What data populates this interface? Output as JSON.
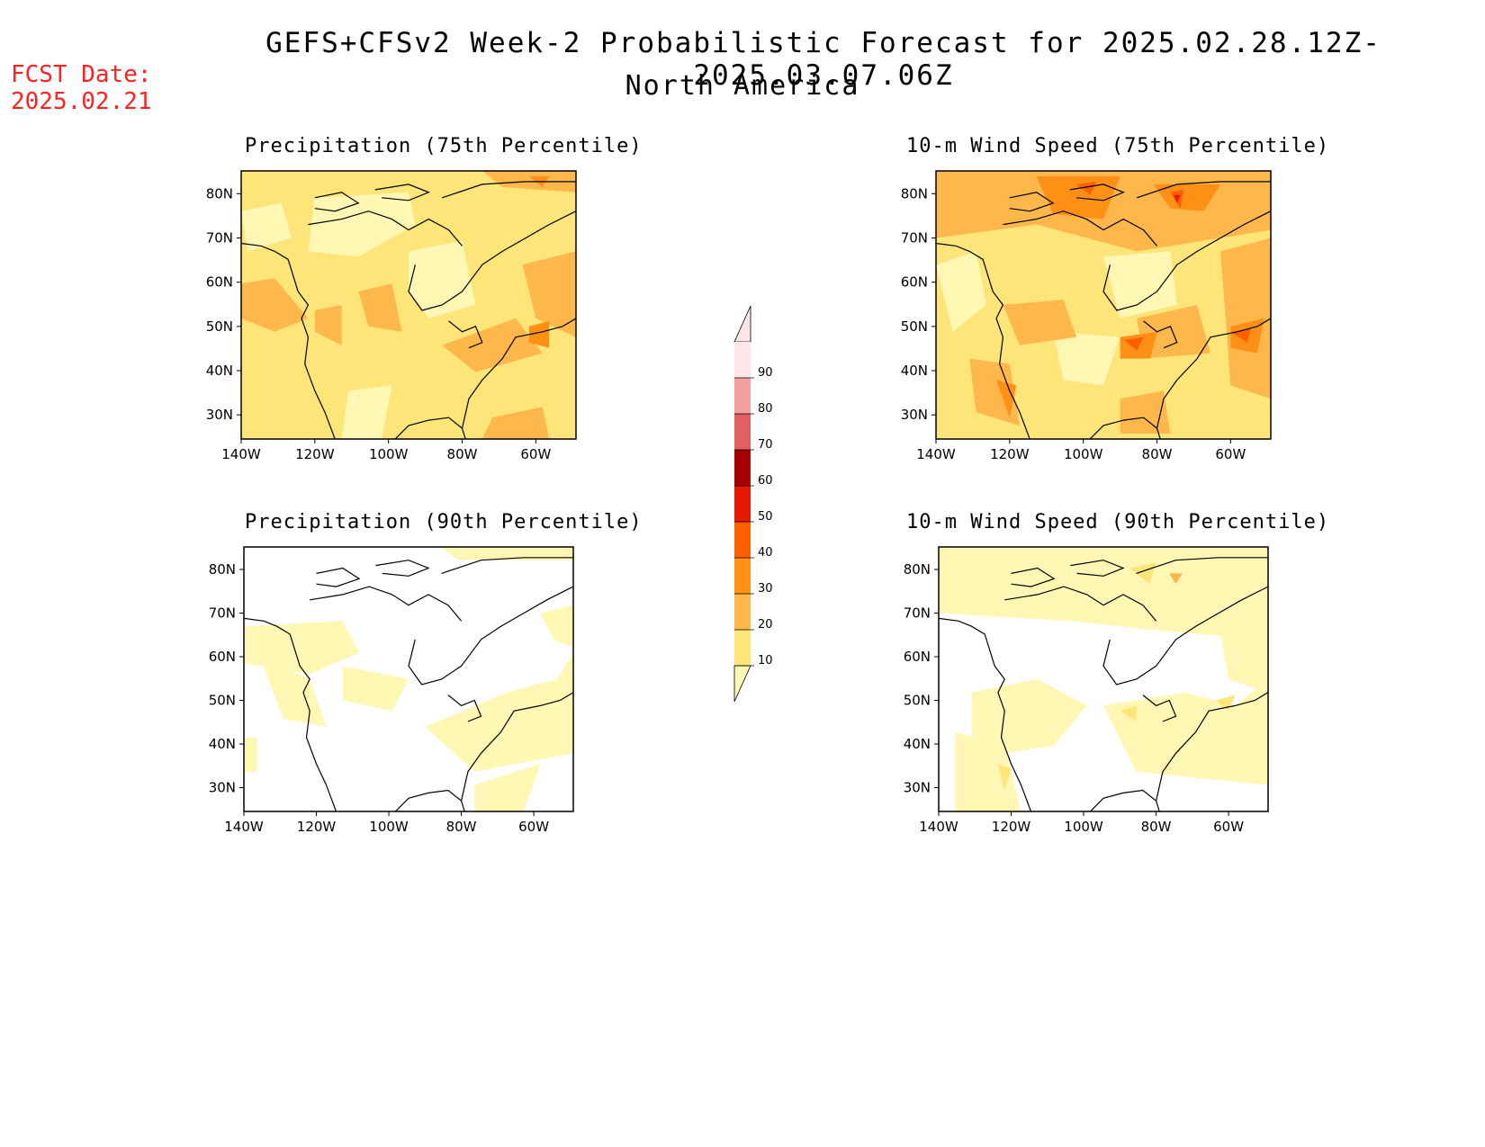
{
  "header": {
    "title": "GEFS+CFSv2 Week-2 Probabilistic Forecast for 2025.02.28.12Z-2025.03.07.06Z",
    "subtitle": "North America",
    "fcst_label": "FCST Date:",
    "fcst_date": "2025.02.21"
  },
  "panels": [
    {
      "title": "Precipitation (75th Percentile)",
      "intensity": "high-precip"
    },
    {
      "title": "10-m Wind Speed (75th Percentile)",
      "intensity": "high-wind"
    },
    {
      "title": "Precipitation (90th Percentile)",
      "intensity": "low-precip"
    },
    {
      "title": "10-m Wind Speed (90th Percentile)",
      "intensity": "low-wind"
    }
  ],
  "axes": {
    "lat_labels": [
      "80N",
      "70N",
      "60N",
      "50N",
      "40N",
      "30N"
    ],
    "lon_labels": [
      "140W",
      "120W",
      "100W",
      "80W",
      "60W"
    ]
  },
  "colorbar": {
    "levels": [
      "10",
      "20",
      "30",
      "40",
      "50",
      "60",
      "70",
      "80",
      "90"
    ],
    "colors": [
      "#fff7b3",
      "#fde57a",
      "#fdb74b",
      "#fe9016",
      "#fe6000",
      "#e51a00",
      "#a80000",
      "#e06060",
      "#f4a0a0",
      "#fde5e8"
    ]
  }
}
